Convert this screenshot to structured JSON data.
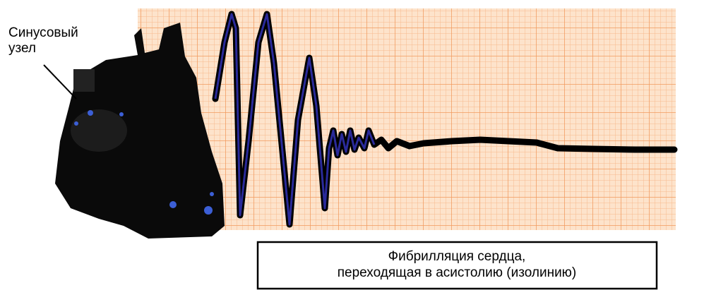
{
  "node_label": {
    "lines": [
      "Синусовый",
      "узел"
    ]
  },
  "caption": {
    "lines": [
      "Фибрилляция сердца,",
      "переходящая в асистолию (изолинию)"
    ]
  }
}
